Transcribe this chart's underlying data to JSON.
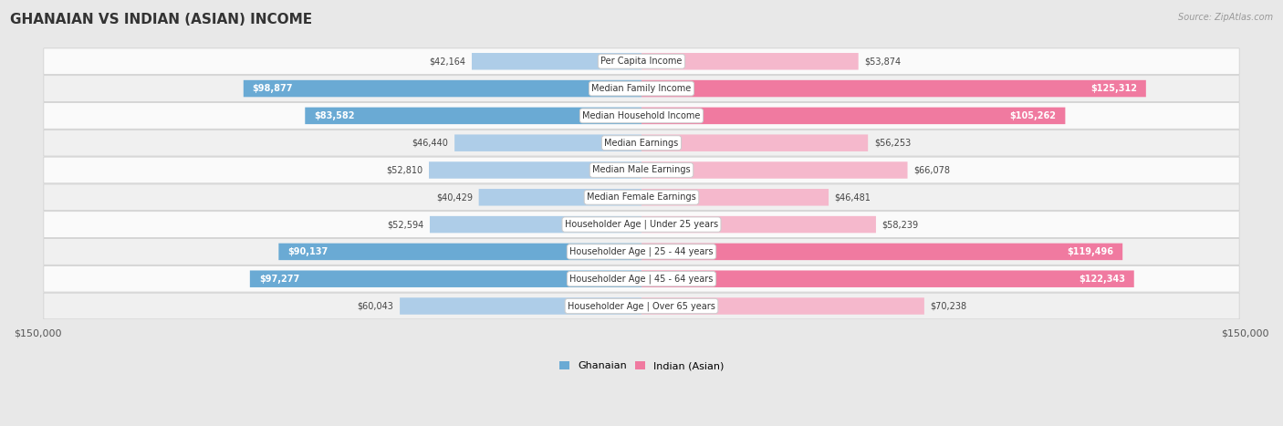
{
  "title": "GHANAIAN VS INDIAN (ASIAN) INCOME",
  "source": "Source: ZipAtlas.com",
  "categories": [
    "Per Capita Income",
    "Median Family Income",
    "Median Household Income",
    "Median Earnings",
    "Median Male Earnings",
    "Median Female Earnings",
    "Householder Age | Under 25 years",
    "Householder Age | 25 - 44 years",
    "Householder Age | 45 - 64 years",
    "Householder Age | Over 65 years"
  ],
  "ghanaian": [
    42164,
    98877,
    83582,
    46440,
    52810,
    40429,
    52594,
    90137,
    97277,
    60043
  ],
  "indian": [
    53874,
    125312,
    105262,
    56253,
    66078,
    46481,
    58239,
    119496,
    122343,
    70238
  ],
  "ghanaian_color_light": "#aecde8",
  "ghanaian_color_dark": "#6aaad4",
  "indian_color_light": "#f5b8cc",
  "indian_color_dark": "#f07aa0",
  "ghanaian_threshold": 75000,
  "indian_threshold": 85000,
  "ghanaian_label": "Ghanaian",
  "indian_label": "Indian (Asian)",
  "x_max": 150000,
  "bg_color": "#e8e8e8",
  "row_color_odd": "#f0f0f0",
  "row_color_even": "#fafafa",
  "title_fontsize": 11,
  "label_fontsize": 7,
  "value_fontsize": 7,
  "legend_fontsize": 8
}
